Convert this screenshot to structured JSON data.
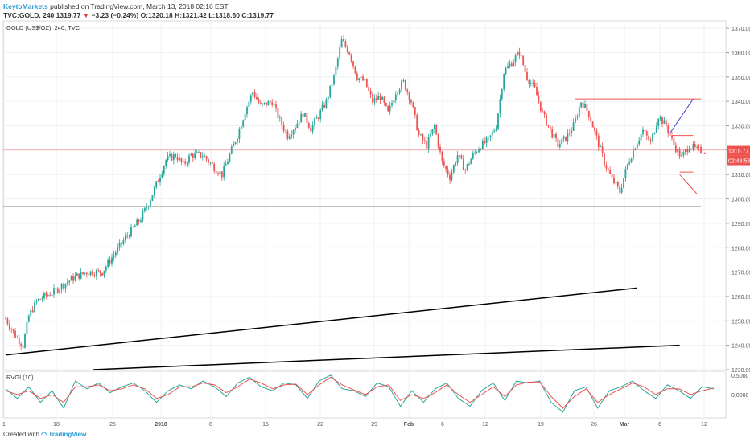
{
  "header": {
    "publisher": "KeytoMarkets",
    "published_text": "published on TradingView.com, March 13, 2018 02:16 EST",
    "symbol": "TVC:GOLD, 240",
    "last": "1319.77",
    "change": "−3.23 (−0.24%)",
    "open": "O:1320.18",
    "high": "H:1321.42",
    "low": "L:1318.60",
    "close": "C:1319.77"
  },
  "footer": {
    "created_with": "Created with",
    "logo_text": "TradingView"
  },
  "colors": {
    "up": "#26a69a",
    "down": "#ef5350",
    "rvgi": "#26a69a",
    "rvgi_signal": "#ef5350",
    "resistance": "#ef5350",
    "support": "#3f3fd9",
    "trend": "#000000",
    "price_badge": "#ef5350",
    "grid": "#eef0f3"
  },
  "chart_data": [
    {
      "type": "candlestick",
      "title": "GOLD (US$/OZ), 240, TVC",
      "y_ticks": [
        1230,
        1240,
        1250,
        1260,
        1270,
        1280,
        1290,
        1300,
        1310,
        1320,
        1330,
        1340,
        1350,
        1360,
        1370
      ],
      "ylim": [
        1230,
        1373
      ],
      "x_ticks": [
        "1",
        "18",
        "25",
        "2018",
        "8",
        "15",
        "22",
        "29",
        "Feb",
        "6",
        "12",
        "19",
        "26",
        "Mar",
        "6",
        "12"
      ],
      "close_path": [
        {
          "i": 0,
          "y": 1251
        },
        {
          "i": 5,
          "y": 1244
        },
        {
          "i": 9,
          "y": 1240
        },
        {
          "i": 12,
          "y": 1252
        },
        {
          "i": 16,
          "y": 1258
        },
        {
          "i": 20,
          "y": 1260
        },
        {
          "i": 25,
          "y": 1262
        },
        {
          "i": 30,
          "y": 1265
        },
        {
          "i": 36,
          "y": 1268
        },
        {
          "i": 42,
          "y": 1270
        },
        {
          "i": 50,
          "y": 1270
        },
        {
          "i": 55,
          "y": 1276
        },
        {
          "i": 62,
          "y": 1284
        },
        {
          "i": 70,
          "y": 1292
        },
        {
          "i": 75,
          "y": 1300
        },
        {
          "i": 79,
          "y": 1308
        },
        {
          "i": 83,
          "y": 1316
        },
        {
          "i": 88,
          "y": 1318
        },
        {
          "i": 92,
          "y": 1314
        },
        {
          "i": 96,
          "y": 1318
        },
        {
          "i": 102,
          "y": 1318
        },
        {
          "i": 108,
          "y": 1313
        },
        {
          "i": 112,
          "y": 1310
        },
        {
          "i": 116,
          "y": 1318
        },
        {
          "i": 120,
          "y": 1326
        },
        {
          "i": 124,
          "y": 1336
        },
        {
          "i": 128,
          "y": 1344
        },
        {
          "i": 132,
          "y": 1338
        },
        {
          "i": 138,
          "y": 1340
        },
        {
          "i": 142,
          "y": 1332
        },
        {
          "i": 146,
          "y": 1326
        },
        {
          "i": 150,
          "y": 1330
        },
        {
          "i": 154,
          "y": 1335
        },
        {
          "i": 158,
          "y": 1329
        },
        {
          "i": 162,
          "y": 1334
        },
        {
          "i": 166,
          "y": 1340
        },
        {
          "i": 170,
          "y": 1350
        },
        {
          "i": 174,
          "y": 1365
        },
        {
          "i": 178,
          "y": 1360
        },
        {
          "i": 182,
          "y": 1350
        },
        {
          "i": 186,
          "y": 1348
        },
        {
          "i": 190,
          "y": 1340
        },
        {
          "i": 194,
          "y": 1342
        },
        {
          "i": 198,
          "y": 1335
        },
        {
          "i": 202,
          "y": 1344
        },
        {
          "i": 206,
          "y": 1348
        },
        {
          "i": 210,
          "y": 1340
        },
        {
          "i": 214,
          "y": 1326
        },
        {
          "i": 218,
          "y": 1322
        },
        {
          "i": 222,
          "y": 1330
        },
        {
          "i": 226,
          "y": 1315
        },
        {
          "i": 230,
          "y": 1309
        },
        {
          "i": 234,
          "y": 1318
        },
        {
          "i": 238,
          "y": 1312
        },
        {
          "i": 242,
          "y": 1318
        },
        {
          "i": 246,
          "y": 1322
        },
        {
          "i": 250,
          "y": 1324
        },
        {
          "i": 254,
          "y": 1330
        },
        {
          "i": 258,
          "y": 1352
        },
        {
          "i": 262,
          "y": 1356
        },
        {
          "i": 266,
          "y": 1360
        },
        {
          "i": 270,
          "y": 1350
        },
        {
          "i": 274,
          "y": 1345
        },
        {
          "i": 278,
          "y": 1335
        },
        {
          "i": 282,
          "y": 1328
        },
        {
          "i": 286,
          "y": 1322
        },
        {
          "i": 290,
          "y": 1325
        },
        {
          "i": 294,
          "y": 1330
        },
        {
          "i": 298,
          "y": 1340
        },
        {
          "i": 302,
          "y": 1335
        },
        {
          "i": 306,
          "y": 1325
        },
        {
          "i": 310,
          "y": 1315
        },
        {
          "i": 314,
          "y": 1308
        },
        {
          "i": 318,
          "y": 1303
        },
        {
          "i": 322,
          "y": 1314
        },
        {
          "i": 326,
          "y": 1322
        },
        {
          "i": 330,
          "y": 1328
        },
        {
          "i": 334,
          "y": 1323
        },
        {
          "i": 338,
          "y": 1334
        },
        {
          "i": 342,
          "y": 1330
        },
        {
          "i": 346,
          "y": 1322
        },
        {
          "i": 350,
          "y": 1317
        },
        {
          "i": 354,
          "y": 1322
        },
        {
          "i": 358,
          "y": 1320
        },
        {
          "i": 362,
          "y": 1319.77
        }
      ],
      "last_price": "1319.77",
      "countdown": "02:43:58",
      "drawings": {
        "resistance_top": 1341,
        "support_low": 1302,
        "level_mid": 1320,
        "level_low": 1297,
        "flag_top": 1326,
        "flag_bottom": 1311
      }
    },
    {
      "type": "line",
      "title": "RVGI (10)",
      "y_ticks": [
        "0.5000",
        "0.0000"
      ],
      "ylim": [
        -0.6,
        0.6
      ],
      "series": [
        {
          "name": "RVGI",
          "values": [
            0.15,
            -0.1,
            0.2,
            -0.2,
            0.1,
            -0.35,
            0.35,
            0.15,
            0.3,
            0.05,
            0.2,
            0.3,
            0.1,
            -0.2,
            0.1,
            0.25,
            0.15,
            0.35,
            0.2,
            -0.05,
            0.3,
            0.45,
            0.2,
            0.1,
            0.3,
            0.25,
            -0.1,
            0.35,
            0.5,
            0.15,
            0.1,
            -0.05,
            0.3,
            0.2,
            -0.3,
            0.1,
            -0.2,
            0.15,
            0.3,
            -0.1,
            -0.3,
            0.1,
            0.3,
            -0.15,
            0.35,
            0.3,
            0.35,
            -0.2,
            -0.45,
            0.1,
            0.2,
            -0.35,
            0.1,
            0.2,
            0.35,
            0.1,
            -0.1,
            0.25,
            0.1,
            -0.1,
            0.2,
            0.15
          ]
        },
        {
          "name": "Signal",
          "values": [
            0.1,
            0.0,
            0.1,
            -0.1,
            0.0,
            -0.2,
            0.2,
            0.2,
            0.25,
            0.1,
            0.15,
            0.25,
            0.15,
            -0.1,
            0.0,
            0.2,
            0.2,
            0.3,
            0.25,
            0.05,
            0.2,
            0.4,
            0.3,
            0.15,
            0.25,
            0.27,
            0.0,
            0.25,
            0.45,
            0.25,
            0.12,
            0.0,
            0.2,
            0.25,
            -0.15,
            0.0,
            -0.1,
            0.05,
            0.25,
            0.0,
            -0.2,
            0.0,
            0.2,
            -0.05,
            0.25,
            0.32,
            0.33,
            -0.05,
            -0.35,
            -0.05,
            0.15,
            -0.2,
            0.0,
            0.15,
            0.3,
            0.2,
            0.0,
            0.15,
            0.15,
            0.0,
            0.1,
            0.17
          ]
        }
      ]
    }
  ]
}
